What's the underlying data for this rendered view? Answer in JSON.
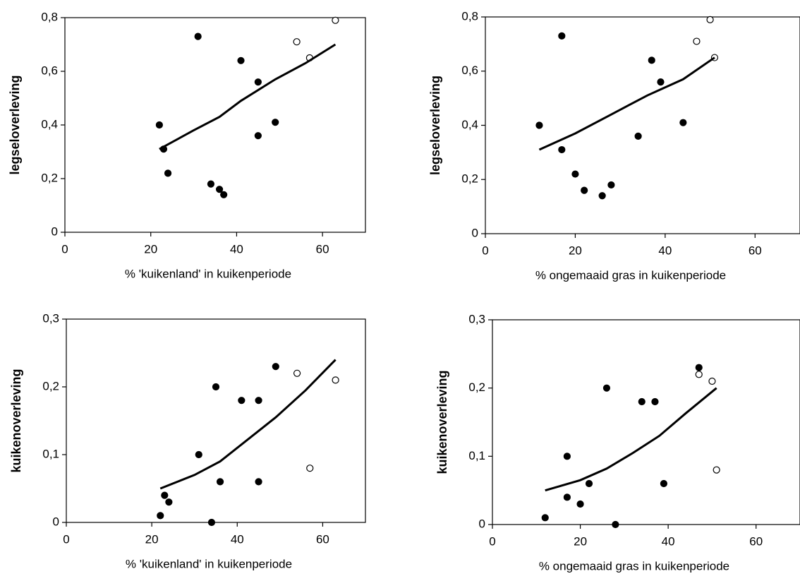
{
  "chart_data": [
    {
      "type": "scatter",
      "ylabel": "legseloverleving",
      "xlabel": "% 'kuikenland' in kuikenperiode",
      "xlim": [
        0,
        70
      ],
      "xticks": [
        0,
        20,
        40,
        60
      ],
      "ylim": [
        0,
        0.8
      ],
      "yticks": [
        0,
        {
          "value": 0.2,
          "label": "0,2"
        },
        {
          "value": 0.4,
          "label": "0,4"
        },
        {
          "value": 0.6,
          "label": "0,6"
        },
        {
          "value": 0.8,
          "label": "0,8"
        }
      ],
      "series": [
        {
          "style": "filled",
          "color": "#000000",
          "x": [
            22,
            23,
            24,
            31,
            34,
            36,
            37,
            41,
            45,
            45,
            49
          ],
          "values": [
            0.4,
            0.31,
            0.22,
            0.73,
            0.18,
            0.16,
            0.14,
            0.64,
            0.56,
            0.36,
            0.41
          ]
        },
        {
          "style": "open",
          "color": "#000000",
          "x": [
            54,
            57,
            63
          ],
          "values": [
            0.71,
            0.65,
            0.79
          ]
        },
        {
          "style": "line",
          "color": "#000000",
          "x": [
            22,
            30,
            36,
            41,
            49,
            56,
            63
          ],
          "values": [
            0.31,
            0.38,
            0.43,
            0.49,
            0.57,
            0.63,
            0.7
          ]
        }
      ]
    },
    {
      "type": "scatter",
      "ylabel": "legseloverleving",
      "xlabel": "% ongemaaid gras in kuikenperiode",
      "xlim": [
        0,
        70
      ],
      "xticks": [
        0,
        20,
        40,
        60
      ],
      "ylim": [
        0,
        0.8
      ],
      "yticks": [
        0,
        {
          "value": 0.2,
          "label": "0,2"
        },
        {
          "value": 0.4,
          "label": "0,4"
        },
        {
          "value": 0.6,
          "label": "0,6"
        },
        {
          "value": 0.8,
          "label": "0,8"
        }
      ],
      "series": [
        {
          "style": "filled",
          "color": "#000000",
          "x": [
            12,
            17,
            17,
            20,
            22,
            26,
            28,
            34,
            37,
            39,
            44
          ],
          "values": [
            0.4,
            0.31,
            0.73,
            0.22,
            0.16,
            0.14,
            0.18,
            0.36,
            0.64,
            0.56,
            0.41
          ]
        },
        {
          "style": "open",
          "color": "#000000",
          "x": [
            47,
            50,
            51
          ],
          "values": [
            0.71,
            0.79,
            0.65
          ]
        },
        {
          "style": "line",
          "color": "#000000",
          "x": [
            12,
            20,
            28,
            36,
            44,
            51
          ],
          "values": [
            0.31,
            0.37,
            0.44,
            0.51,
            0.57,
            0.65
          ]
        }
      ]
    },
    {
      "type": "scatter",
      "ylabel": "kuikenoverleving",
      "xlabel": "% 'kuikenland' in kuikenperiode",
      "xlim": [
        0,
        70
      ],
      "xticks": [
        0,
        20,
        40,
        60
      ],
      "ylim": [
        0,
        0.3
      ],
      "yticks": [
        0,
        {
          "value": 0.1,
          "label": "0,1"
        },
        {
          "value": 0.2,
          "label": "0,2"
        },
        {
          "value": 0.3,
          "label": "0,3"
        }
      ],
      "series": [
        {
          "style": "filled",
          "color": "#000000",
          "x": [
            22,
            23,
            24,
            31,
            34,
            35,
            36,
            41,
            45,
            45,
            49
          ],
          "values": [
            0.01,
            0.04,
            0.03,
            0.1,
            0.0,
            0.2,
            0.06,
            0.18,
            0.18,
            0.06,
            0.23
          ]
        },
        {
          "style": "open",
          "color": "#000000",
          "x": [
            54,
            57,
            63
          ],
          "values": [
            0.22,
            0.08,
            0.21
          ]
        },
        {
          "style": "line",
          "color": "#000000",
          "x": [
            22,
            30,
            36,
            42,
            49,
            56,
            63
          ],
          "values": [
            0.05,
            0.07,
            0.09,
            0.12,
            0.155,
            0.195,
            0.24
          ]
        }
      ]
    },
    {
      "type": "scatter",
      "ylabel": "kuikenoverleving",
      "xlabel": "% ongemaaid gras in kuikenperiode",
      "xlim": [
        0,
        70
      ],
      "xticks": [
        0,
        20,
        40,
        60
      ],
      "ylim": [
        0,
        0.3
      ],
      "yticks": [
        0,
        {
          "value": 0.1,
          "label": "0,1"
        },
        {
          "value": 0.2,
          "label": "0,2"
        },
        {
          "value": 0.3,
          "label": "0,3"
        }
      ],
      "series": [
        {
          "style": "filled",
          "color": "#000000",
          "x": [
            12,
            17,
            17,
            20,
            22,
            26,
            28,
            34,
            37,
            39,
            47
          ],
          "values": [
            0.01,
            0.1,
            0.04,
            0.03,
            0.06,
            0.2,
            0.0,
            0.18,
            0.18,
            0.06,
            0.23
          ]
        },
        {
          "style": "open",
          "color": "#000000",
          "x": [
            47,
            50,
            51
          ],
          "values": [
            0.22,
            0.21,
            0.08
          ]
        },
        {
          "style": "line",
          "color": "#000000",
          "x": [
            12,
            20,
            26,
            32,
            38,
            44,
            51
          ],
          "values": [
            0.05,
            0.065,
            0.082,
            0.105,
            0.13,
            0.163,
            0.2
          ]
        }
      ]
    }
  ]
}
